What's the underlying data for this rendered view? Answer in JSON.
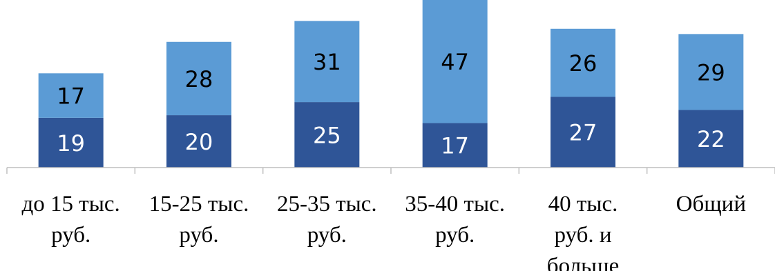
{
  "chart_data": {
    "type": "bar",
    "stacked": true,
    "categories": [
      [
        "до 15 тыс.",
        "руб."
      ],
      [
        "15-25 тыс.",
        "руб."
      ],
      [
        "25-35 тыс.",
        "руб."
      ],
      [
        "35-40 тыс.",
        "руб."
      ],
      [
        "40 тыс.",
        "руб. и",
        "больше"
      ],
      [
        "Общий"
      ]
    ],
    "series": [
      {
        "values": [
          19,
          20,
          25,
          17,
          27,
          22
        ],
        "color": "#2F5597",
        "label_color": "#ffffff"
      },
      {
        "values": [
          17,
          28,
          31,
          47,
          26,
          29
        ],
        "color": "#5B9BD5",
        "label_color": "#000000"
      }
    ],
    "ylim": [
      0,
      64
    ],
    "grid": false,
    "legend": "none",
    "title": "",
    "xlabel": "",
    "ylabel": ""
  }
}
